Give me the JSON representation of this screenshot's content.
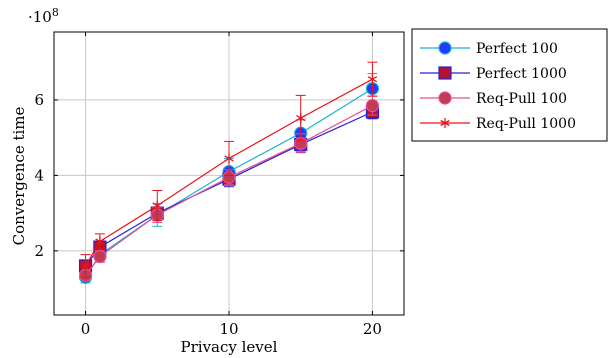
{
  "chart_data": {
    "type": "line",
    "title": "",
    "xlabel": "Privacy level",
    "ylabel": "Convergence time",
    "y_scale_label": "·10",
    "y_scale_exponent": "8",
    "x_range": [
      -2.2,
      22.2
    ],
    "y_range": [
      0.3,
      7.8
    ],
    "x_ticks": [
      0,
      10,
      20
    ],
    "y_ticks": [
      2,
      4,
      6
    ],
    "grid": true,
    "legend_position": "outside-right",
    "series": [
      {
        "name": "Perfect 100",
        "color": "#1ab1d1",
        "marker": "circle",
        "marker_fill": "#1f3cff",
        "x": [
          0,
          1,
          5,
          10,
          15,
          20
        ],
        "y": [
          1.3,
          1.9,
          2.95,
          4.1,
          5.12,
          6.3
        ],
        "err": [
          0.15,
          0.2,
          0.3,
          0.35,
          0.35,
          0.4
        ]
      },
      {
        "name": "Perfect 1000",
        "color": "#2a1fd6",
        "marker": "square",
        "marker_fill": "#b5132e",
        "x": [
          0,
          1,
          5,
          10,
          15,
          20
        ],
        "y": [
          1.6,
          2.1,
          3.0,
          3.9,
          4.82,
          5.68
        ],
        "err": [
          0.1,
          0.12,
          0.15,
          0.2,
          0.2,
          0.18
        ]
      },
      {
        "name": "Req-Pull 100",
        "color": "#e84f8f",
        "marker": "circle",
        "marker_fill": "#c23a55",
        "x": [
          0,
          1,
          5,
          10,
          15,
          20
        ],
        "y": [
          1.35,
          1.85,
          2.95,
          3.95,
          4.85,
          5.85
        ],
        "err": [
          0.1,
          0.15,
          0.2,
          0.2,
          0.25,
          0.25
        ]
      },
      {
        "name": "Req-Pull 1000",
        "color": "#e8141a",
        "marker": "star",
        "marker_fill": "#e8141a",
        "x": [
          0,
          1,
          5,
          10,
          15,
          20
        ],
        "y": [
          1.6,
          2.25,
          3.2,
          4.45,
          5.52,
          6.55
        ],
        "err": [
          0.3,
          0.2,
          0.4,
          0.45,
          0.6,
          0.45
        ]
      }
    ]
  }
}
